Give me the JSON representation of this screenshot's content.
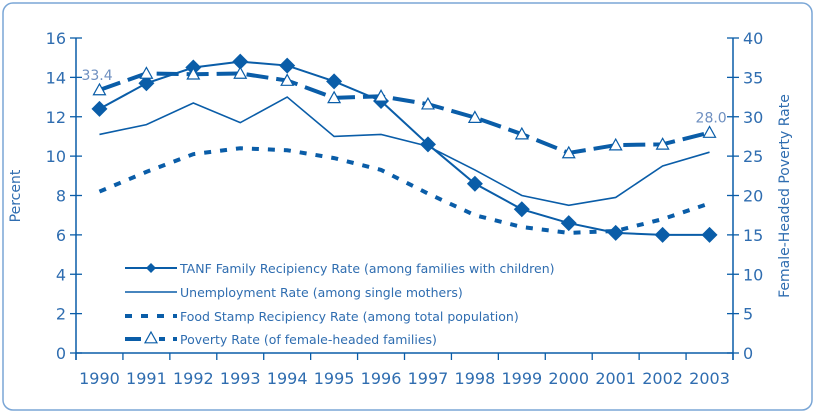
{
  "chart_data": {
    "type": "line",
    "categories": [
      "1990",
      "1991",
      "1992",
      "1993",
      "1994",
      "1995",
      "1996",
      "1997",
      "1998",
      "1999",
      "2000",
      "2001",
      "2002",
      "2003"
    ],
    "ylabel": "Percent",
    "y2label": "Female-Headed Poverty Rate",
    "ylim": [
      0,
      16
    ],
    "y2lim": [
      0,
      40
    ],
    "yticks": [
      0,
      2,
      4,
      6,
      8,
      10,
      12,
      14,
      16
    ],
    "y2ticks": [
      0,
      5,
      10,
      15,
      20,
      25,
      30,
      35,
      40
    ],
    "grid": false,
    "legend_placement": "bottom-left",
    "colors": {
      "line": "#0a5da8",
      "text": "#2f6db0",
      "border": "#7aa6d6"
    },
    "series": [
      {
        "name": "TANF Family Recipiency Rate (among families with children)",
        "axis": "left",
        "style": "solid-diamond",
        "values": [
          12.4,
          13.7,
          14.5,
          14.8,
          14.6,
          13.8,
          12.8,
          10.6,
          8.6,
          7.3,
          6.6,
          6.1,
          6.0,
          6.0
        ]
      },
      {
        "name": "Unemployment Rate (among single mothers)",
        "axis": "left",
        "style": "solid",
        "values": [
          11.1,
          11.6,
          12.7,
          11.7,
          13.0,
          11.0,
          11.1,
          10.5,
          9.3,
          8.0,
          7.5,
          7.9,
          9.5,
          10.2
        ]
      },
      {
        "name": "Food Stamp Recipiency Rate (among total population)",
        "axis": "left",
        "style": "dotted",
        "values": [
          8.2,
          9.2,
          10.1,
          10.4,
          10.3,
          9.9,
          9.3,
          8.1,
          7.0,
          6.4,
          6.1,
          6.2,
          6.8,
          7.6
        ]
      },
      {
        "name": "Poverty Rate (of female-headed families)",
        "axis": "right",
        "style": "dashed-triangle",
        "values": [
          33.4,
          35.5,
          35.4,
          35.5,
          34.6,
          32.4,
          32.6,
          31.6,
          29.9,
          27.8,
          25.4,
          26.4,
          26.5,
          28.0
        ]
      }
    ],
    "annotations": [
      {
        "series": 3,
        "index": 0,
        "text": "33.4"
      },
      {
        "series": 3,
        "index": 13,
        "text": "28.0"
      }
    ]
  }
}
